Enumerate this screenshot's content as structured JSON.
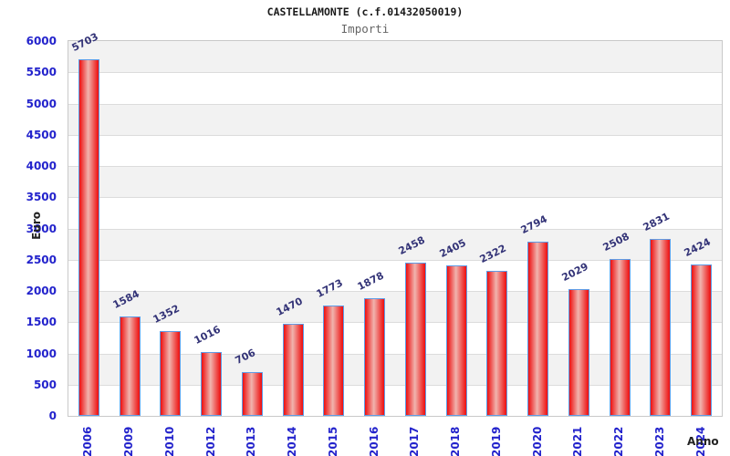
{
  "chart_data": {
    "type": "bar",
    "title": "CASTELLAMONTE (c.f.01432050019)",
    "subtitle": "Importi",
    "xlabel": "Anno",
    "ylabel": "Euro",
    "categories": [
      "2006",
      "2009",
      "2010",
      "2012",
      "2013",
      "2014",
      "2015",
      "2016",
      "2017",
      "2018",
      "2019",
      "2020",
      "2021",
      "2022",
      "2023",
      "2024"
    ],
    "values": [
      5703,
      1584,
      1352,
      1016,
      706,
      1470,
      1773,
      1878,
      2458,
      2405,
      2322,
      2794,
      2029,
      2508,
      2831,
      2424
    ],
    "ylim": [
      0,
      6000
    ],
    "ytick_step": 500,
    "grid": true,
    "legend_position": "none",
    "colors": {
      "bar_edge": "#5e9ce6",
      "bar_red": "#ee1515",
      "bar_highlight": "#f0b4ae",
      "tick_label": "#2323cc",
      "value_label": "#333377",
      "band_gray": "#f2f2f2",
      "band_white": "#ffffff",
      "grid_line": "#dcdcdc",
      "plot_border": "#c9c9c9"
    }
  }
}
